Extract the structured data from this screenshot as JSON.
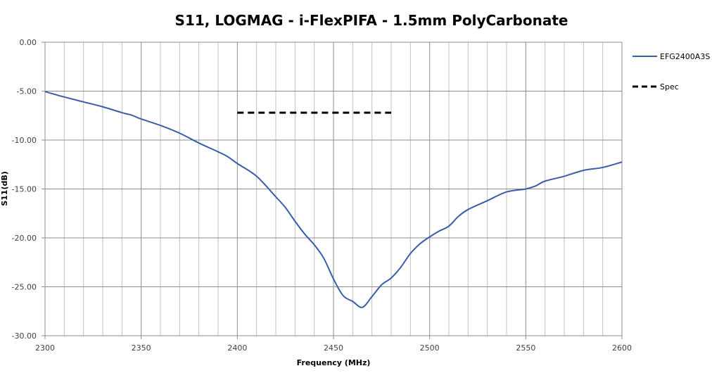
{
  "chart_data": {
    "type": "line",
    "title": "S11, LOGMAG - i-FlexPIFA - 1.5mm PolyCarbonate",
    "xlabel": "Frequency (MHz)",
    "ylabel": "S11(dB)",
    "xlim": [
      2300,
      2600
    ],
    "ylim": [
      -30,
      0
    ],
    "x_ticks": [
      "2300",
      "2350",
      "2400",
      "2450",
      "2500",
      "2550",
      "2600"
    ],
    "y_ticks": [
      "0.00",
      "-5.00",
      "-10.00",
      "-15.00",
      "-20.00",
      "-25.00",
      "-30.00"
    ],
    "x_minor_step": 10,
    "grid": true,
    "legend_position": "right",
    "series": [
      {
        "name": "EFG2400A3S",
        "color": "#3A5DA8",
        "style": "solid",
        "x": [
          2300,
          2310,
          2320,
          2330,
          2340,
          2345,
          2350,
          2360,
          2370,
          2380,
          2390,
          2395,
          2400,
          2410,
          2420,
          2425,
          2430,
          2435,
          2440,
          2445,
          2450,
          2455,
          2460,
          2465,
          2470,
          2475,
          2480,
          2485,
          2490,
          2495,
          2500,
          2505,
          2510,
          2515,
          2520,
          2530,
          2540,
          2550,
          2555,
          2560,
          2570,
          2580,
          2590,
          2600
        ],
        "y": [
          -5.05,
          -5.6,
          -6.1,
          -6.6,
          -7.2,
          -7.45,
          -7.85,
          -8.5,
          -9.3,
          -10.3,
          -11.2,
          -11.7,
          -12.4,
          -13.7,
          -15.8,
          -16.9,
          -18.3,
          -19.6,
          -20.7,
          -22.1,
          -24.2,
          -25.9,
          -26.5,
          -27.1,
          -26.0,
          -24.8,
          -24.1,
          -23.0,
          -21.6,
          -20.6,
          -19.9,
          -19.3,
          -18.8,
          -17.8,
          -17.1,
          -16.2,
          -15.3,
          -15.0,
          -14.7,
          -14.2,
          -13.7,
          -13.1,
          -12.8,
          -12.25
        ]
      },
      {
        "name": "Spec",
        "color": "#000000",
        "style": "dashed",
        "x": [
          2400,
          2480
        ],
        "y": [
          -7.2,
          -7.2
        ]
      }
    ]
  }
}
